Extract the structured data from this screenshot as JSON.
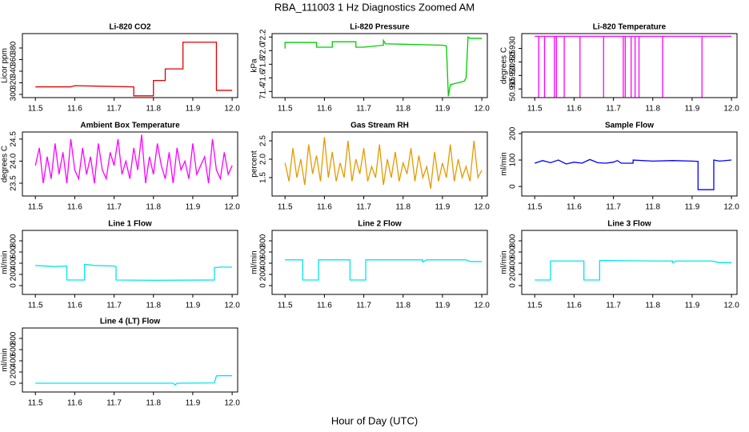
{
  "title": "RBA_111003  1 Hz Diagnostics Zoomed AM",
  "x_label": "Hour of Day (UTC)",
  "chart_data": [
    {
      "type": "line",
      "title": "Li-820 CO2",
      "y_label": "Licor ppm",
      "color": "#e00000",
      "x": [
        11.5,
        11.59,
        11.6,
        11.75,
        11.75,
        11.8,
        11.8,
        11.83,
        11.83,
        11.875,
        11.875,
        11.96,
        11.96,
        12.0
      ],
      "values": [
        313,
        313,
        315,
        313,
        297.5,
        297.5,
        324,
        324,
        344,
        344,
        390,
        390,
        307,
        307
      ],
      "xlim": [
        11.467,
        12.014
      ],
      "ylim": [
        294.5,
        404.8
      ],
      "xticks": [
        11.5,
        11.6,
        11.7,
        11.8,
        11.9,
        {
          "value": 12,
          "label": "12.0"
        }
      ],
      "yticks": [
        300,
        320,
        340,
        360,
        380
      ]
    },
    {
      "type": "line",
      "title": "Li-820 Pressure",
      "y_label": "kPa",
      "color": "#00cc00",
      "x": [
        11.5,
        11.5,
        11.51,
        11.58,
        11.58,
        11.62,
        11.62,
        11.68,
        11.68,
        11.7,
        11.75,
        11.75,
        11.755,
        11.9,
        11.91,
        11.915,
        11.92,
        11.955,
        11.96,
        11.965,
        11.97,
        12.0
      ],
      "values": [
        72.03,
        72.12,
        72.12,
        72.12,
        72.05,
        72.05,
        72.13,
        72.13,
        72.05,
        72.05,
        72.08,
        72.15,
        72.1,
        72.08,
        72.07,
        71.33,
        71.5,
        71.55,
        71.6,
        72.2,
        72.18,
        72.18
      ],
      "xlim": [
        11.467,
        12.014
      ],
      "ylim": [
        71.31,
        72.25
      ],
      "xticks": [
        11.5,
        11.6,
        11.7,
        11.8,
        11.9,
        {
          "value": 12,
          "label": "12.0"
        }
      ],
      "yticks": [
        71.4,
        71.6,
        71.8,
        {
          "value": 72,
          "label": "72.0"
        },
        72.2
      ]
    },
    {
      "type": "line",
      "title": "Li-820 Temperature",
      "y_label": "degrees C",
      "color": "#ff00ff",
      "x": [
        11.5,
        11.51,
        11.51,
        11.51,
        11.525,
        11.525,
        11.525,
        11.55,
        11.55,
        11.55,
        11.555,
        11.555,
        11.555,
        11.575,
        11.575,
        11.575,
        11.615,
        11.615,
        11.615,
        11.675,
        11.675,
        11.675,
        11.725,
        11.725,
        11.725,
        11.73,
        11.73,
        11.73,
        11.745,
        11.745,
        11.745,
        11.755,
        11.755,
        11.755,
        11.765,
        11.765,
        11.765,
        11.825,
        11.825,
        11.825,
        11.925,
        11.925,
        11.925,
        12.0
      ],
      "values": [
        50.9345,
        50.9345,
        50.912,
        50.9345,
        50.9345,
        50.912,
        50.9345,
        50.9345,
        50.912,
        50.9345,
        50.9345,
        50.912,
        50.9345,
        50.9345,
        50.912,
        50.9345,
        50.9345,
        50.912,
        50.9345,
        50.9345,
        50.912,
        50.9345,
        50.9345,
        50.912,
        50.9345,
        50.9345,
        50.912,
        50.9345,
        50.9345,
        50.912,
        50.9345,
        50.9345,
        50.912,
        50.9345,
        50.9345,
        50.912,
        50.9345,
        50.9345,
        50.912,
        50.9345,
        50.9345,
        50.912,
        50.9345,
        50.9345
      ],
      "xlim": [
        11.467,
        12.014
      ],
      "ylim": [
        50.9118,
        50.9355
      ],
      "xticks": [
        11.5,
        11.6,
        11.7,
        11.8,
        11.9,
        {
          "value": 12,
          "label": "12.0"
        }
      ],
      "yticks": [
        50.915,
        {
          "value": 50.92,
          "label": "50.920"
        },
        50.925,
        {
          "value": 50.93,
          "label": "50.930"
        }
      ]
    },
    {
      "type": "line",
      "title": "Ambient Box Temperature",
      "y_label": "degrees C",
      "color": "#ff00ff",
      "x": [
        11.5,
        11.51,
        11.52,
        11.53,
        11.54,
        11.55,
        11.56,
        11.57,
        11.58,
        11.59,
        11.6,
        11.61,
        11.62,
        11.63,
        11.64,
        11.65,
        11.66,
        11.67,
        11.68,
        11.69,
        11.7,
        11.71,
        11.72,
        11.73,
        11.74,
        11.75,
        11.76,
        11.77,
        11.78,
        11.79,
        11.8,
        11.81,
        11.82,
        11.83,
        11.84,
        11.85,
        11.86,
        11.87,
        11.88,
        11.89,
        11.9,
        11.91,
        11.92,
        11.93,
        11.94,
        11.95,
        11.96,
        11.97,
        11.98,
        11.99,
        12.0
      ],
      "values": [
        23.9,
        24.3,
        23.5,
        24.1,
        23.6,
        24.4,
        23.7,
        24.2,
        23.5,
        24.5,
        23.8,
        23.6,
        24.3,
        23.7,
        24.1,
        23.5,
        24.4,
        23.8,
        23.6,
        24.2,
        23.9,
        24.5,
        23.7,
        24.0,
        23.6,
        24.3,
        23.8,
        24.6,
        23.5,
        24.1,
        23.7,
        24.4,
        23.9,
        23.6,
        24.2,
        23.5,
        24.3,
        23.8,
        24.0,
        23.6,
        24.4,
        23.7,
        23.9,
        24.1,
        23.5,
        24.5,
        23.8,
        23.6,
        24.2,
        23.7,
        23.9
      ],
      "xlim": [
        11.467,
        12.014
      ],
      "ylim": [
        23.21,
        24.66
      ],
      "xticks": [
        11.5,
        11.6,
        11.7,
        11.8,
        11.9,
        {
          "value": 12,
          "label": "12.0"
        }
      ],
      "yticks": [
        23.5,
        {
          "value": 24,
          "label": "24.0"
        },
        24.5
      ]
    },
    {
      "type": "line",
      "title": "Gas Stream RH",
      "y_label": "percent",
      "color": "#e69a00",
      "x": [
        11.5,
        11.51,
        11.52,
        11.53,
        11.54,
        11.55,
        11.56,
        11.57,
        11.58,
        11.59,
        11.6,
        11.61,
        11.62,
        11.63,
        11.64,
        11.65,
        11.66,
        11.67,
        11.68,
        11.69,
        11.7,
        11.71,
        11.72,
        11.73,
        11.74,
        11.75,
        11.76,
        11.77,
        11.78,
        11.79,
        11.8,
        11.81,
        11.82,
        11.83,
        11.84,
        11.85,
        11.86,
        11.87,
        11.88,
        11.89,
        11.9,
        11.91,
        11.92,
        11.93,
        11.94,
        11.95,
        11.96,
        11.97,
        11.98,
        11.99,
        12.0
      ],
      "values": [
        1.9,
        1.4,
        2.3,
        1.5,
        2.0,
        1.3,
        2.4,
        1.6,
        2.1,
        1.4,
        2.6,
        1.5,
        2.2,
        1.4,
        1.9,
        1.5,
        2.5,
        1.4,
        2.0,
        1.6,
        2.3,
        1.4,
        1.8,
        1.5,
        2.4,
        1.3,
        2.0,
        1.5,
        2.2,
        1.4,
        1.9,
        1.6,
        2.3,
        1.4,
        2.1,
        1.5,
        1.8,
        1.2,
        2.2,
        1.4,
        1.9,
        1.5,
        2.4,
        1.4,
        2.0,
        1.5,
        1.8,
        1.4,
        2.5,
        1.5,
        1.7
      ],
      "xlim": [
        11.467,
        12.014
      ],
      "ylim": [
        1.0,
        2.74
      ],
      "xticks": [
        11.5,
        11.6,
        11.7,
        11.8,
        11.9,
        {
          "value": 12,
          "label": "12.0"
        }
      ],
      "yticks": [
        1.5,
        {
          "value": 2,
          "label": "2.0"
        },
        2.5
      ]
    },
    {
      "type": "line",
      "title": "Sample Flow",
      "y_label": "ml/min",
      "color": "#0000ff",
      "x": [
        11.5,
        11.52,
        11.54,
        11.56,
        11.58,
        11.6,
        11.62,
        11.64,
        11.66,
        11.68,
        11.7,
        11.71,
        11.72,
        11.75,
        11.75,
        11.8,
        11.85,
        11.9,
        11.915,
        11.915,
        11.955,
        11.955,
        11.97,
        12.0
      ],
      "values": [
        88,
        98,
        90,
        100,
        85,
        92,
        88,
        102,
        90,
        88,
        92,
        98,
        88,
        88,
        100,
        96,
        98,
        96,
        95,
        -12,
        -12,
        100,
        96,
        100
      ],
      "xlim": [
        11.467,
        12.014
      ],
      "ylim": [
        -36,
        206
      ],
      "xticks": [
        11.5,
        11.6,
        11.7,
        11.8,
        11.9,
        {
          "value": 12,
          "label": "12.0"
        }
      ],
      "yticks": [
        0,
        100,
        200
      ]
    },
    {
      "type": "line",
      "title": "Line 1 Flow",
      "y_label": "ml/min",
      "color": "#00e5ee",
      "x": [
        11.5,
        11.55,
        11.58,
        11.58,
        11.625,
        11.625,
        11.65,
        11.7,
        11.705,
        11.705,
        11.8,
        11.955,
        11.955,
        11.97,
        12.0
      ],
      "values": [
        360,
        340,
        350,
        100,
        100,
        380,
        360,
        350,
        340,
        100,
        95,
        100,
        320,
        330,
        330
      ],
      "xlim": [
        11.467,
        12.014
      ],
      "ylim": [
        -157,
        986
      ],
      "xticks": [
        11.5,
        11.6,
        11.7,
        11.8,
        11.9,
        {
          "value": 12,
          "label": "12.0"
        }
      ],
      "yticks": [
        0,
        200,
        400,
        600,
        800
      ]
    },
    {
      "type": "line",
      "title": "Line 2 Flow",
      "y_label": "ml/min",
      "color": "#00e5ee",
      "x": [
        11.5,
        11.545,
        11.545,
        11.585,
        11.585,
        11.665,
        11.665,
        11.705,
        11.705,
        11.8,
        11.85,
        11.85,
        11.86,
        11.9,
        11.96,
        11.97,
        12.0
      ],
      "values": [
        460,
        460,
        100,
        100,
        460,
        460,
        100,
        100,
        460,
        460,
        460,
        420,
        460,
        460,
        460,
        430,
        430
      ],
      "xlim": [
        11.467,
        12.014
      ],
      "ylim": [
        -157,
        986
      ],
      "xticks": [
        11.5,
        11.6,
        11.7,
        11.8,
        11.9,
        {
          "value": 12,
          "label": "12.0"
        }
      ],
      "yticks": [
        0,
        200,
        400,
        600,
        800
      ]
    },
    {
      "type": "line",
      "title": "Line 3 Flow",
      "y_label": "ml/min",
      "color": "#00e5ee",
      "x": [
        11.5,
        11.54,
        11.54,
        11.625,
        11.625,
        11.665,
        11.665,
        11.8,
        11.85,
        11.85,
        11.86,
        11.95,
        11.97,
        12.0
      ],
      "values": [
        100,
        100,
        440,
        440,
        100,
        100,
        450,
        440,
        440,
        410,
        440,
        440,
        410,
        410
      ],
      "xlim": [
        11.467,
        12.014
      ],
      "ylim": [
        -157,
        986
      ],
      "xticks": [
        11.5,
        11.6,
        11.7,
        11.8,
        11.9,
        {
          "value": 12,
          "label": "12.0"
        }
      ],
      "yticks": [
        0,
        200,
        400,
        600,
        800
      ]
    },
    {
      "type": "line",
      "title": "Line 4 (LT) Flow",
      "y_label": "ml/min",
      "color": "#00e5ee",
      "x": [
        11.5,
        11.7,
        11.85,
        11.855,
        11.86,
        11.955,
        11.96,
        11.97,
        12.0
      ],
      "values": [
        0,
        0,
        0,
        -30,
        0,
        5,
        130,
        135,
        135
      ],
      "xlim": [
        11.467,
        12.014
      ],
      "ylim": [
        -157,
        986
      ],
      "xticks": [
        11.5,
        11.6,
        11.7,
        11.8,
        11.9,
        {
          "value": 12,
          "label": "12.0"
        }
      ],
      "yticks": [
        0,
        200,
        400,
        600,
        800
      ]
    }
  ]
}
